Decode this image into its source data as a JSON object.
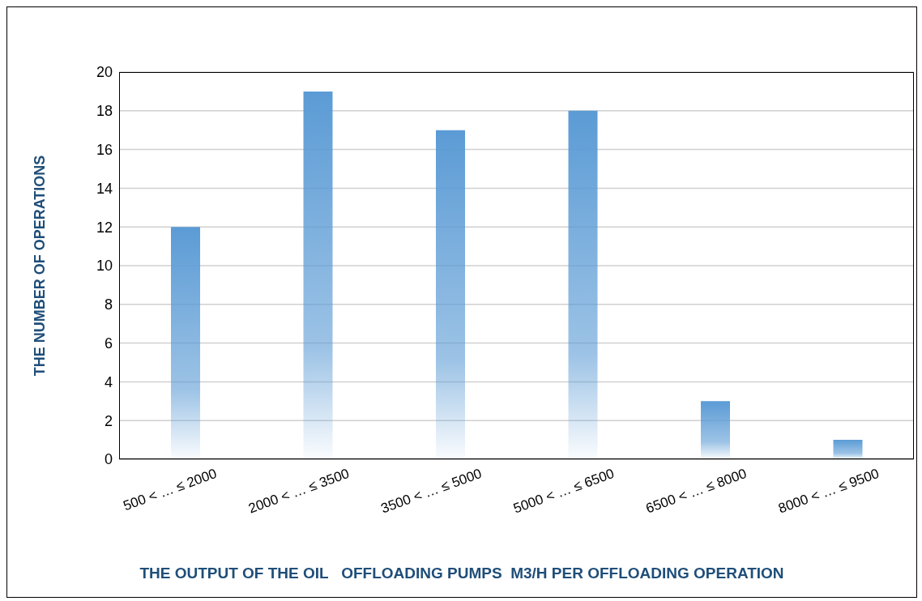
{
  "chart_data": {
    "type": "bar",
    "categories": [
      "500 <  … ≤ 2000",
      "2000 <  … ≤ 3500",
      "3500 <  … ≤ 5000",
      "5000 <  … ≤ 6500",
      "6500 <  … ≤ 8000",
      "8000 <  … ≤ 9500"
    ],
    "values": [
      12,
      19,
      17,
      18,
      3,
      1
    ],
    "color": "#5b9bd5",
    "xlabel": "THE OUTPUT OF THE OIL   OFFLOADING PUMPS  M3/H PER OFFLOADING OPERATION",
    "ylabel": "THE NUMBER OF OPERATIONS",
    "ylim": [
      0,
      20
    ],
    "yticks": [
      0,
      2,
      4,
      6,
      8,
      10,
      12,
      14,
      16,
      18,
      20
    ],
    "grid": "y",
    "legend": false
  }
}
